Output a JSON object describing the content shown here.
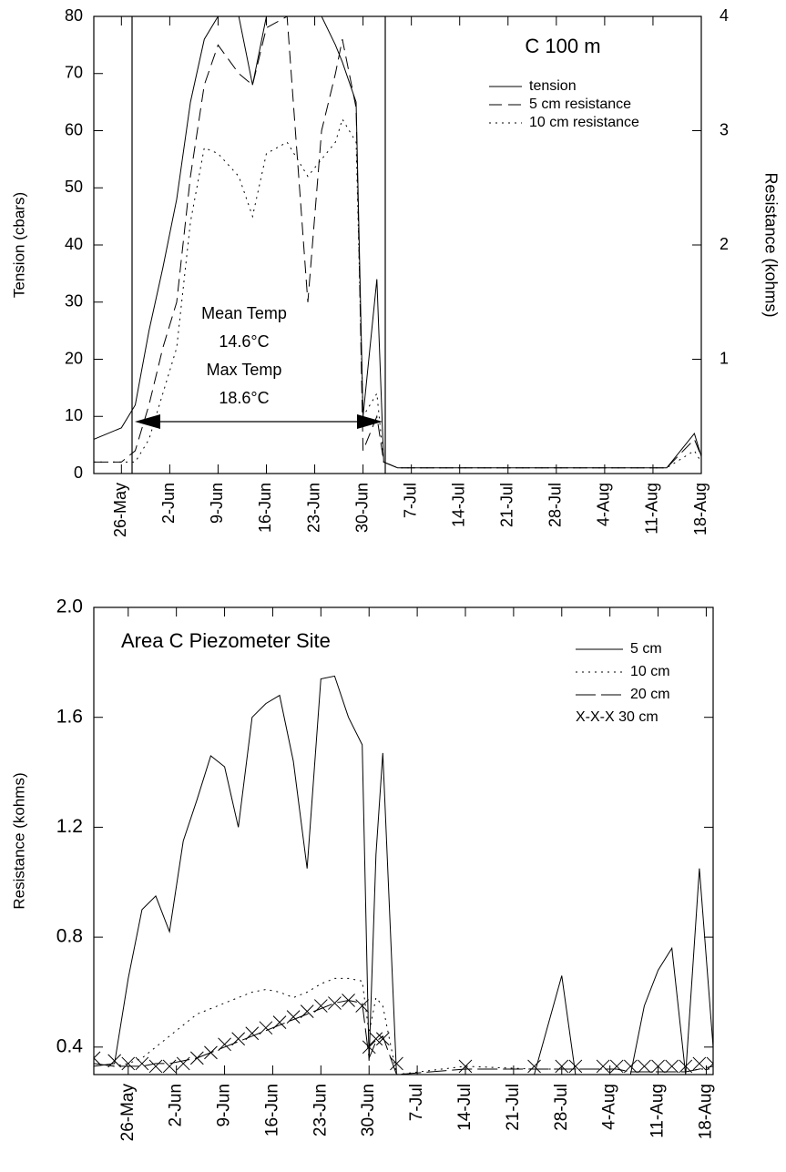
{
  "chart_data": [
    {
      "type": "line",
      "title": "C 100 m",
      "y_label": "Tension (cbars)",
      "y2_label": "Resistance (kohms)",
      "annotations": [
        "Mean Temp",
        "14.6°C",
        "Max Temp",
        "18.6°C"
      ],
      "x": [
        142,
        146,
        148,
        150,
        152,
        154,
        156,
        158,
        160,
        163,
        165,
        167,
        170,
        173,
        175,
        177,
        178,
        180,
        181,
        183,
        184,
        186,
        195,
        205,
        215,
        225,
        229,
        230
      ],
      "xlim": [
        142,
        230
      ],
      "xticks": [
        {
          "value": 146,
          "label": "26-May"
        },
        {
          "value": 153,
          "label": "2-Jun"
        },
        {
          "value": 160,
          "label": "9-Jun"
        },
        {
          "value": 167,
          "label": "16-Jun"
        },
        {
          "value": 174,
          "label": "23-Jun"
        },
        {
          "value": 181,
          "label": "30-Jun"
        },
        {
          "value": 188,
          "label": "7-Jul"
        },
        {
          "value": 195,
          "label": "14-Jul"
        },
        {
          "value": 202,
          "label": "21-Jul"
        },
        {
          "value": 209,
          "label": "28-Jul"
        },
        {
          "value": 216,
          "label": "4-Aug"
        },
        {
          "value": 223,
          "label": "11-Aug"
        },
        {
          "value": 230,
          "label": "18-Aug"
        }
      ],
      "ylim": [
        0,
        80
      ],
      "yticks": [
        0,
        10,
        20,
        30,
        40,
        50,
        60,
        70,
        80
      ],
      "y2lim": [
        0,
        4
      ],
      "y2ticks": [
        1,
        2,
        3,
        4
      ],
      "series": [
        {
          "name": "tension",
          "color": "#000000",
          "style": "solid",
          "values": [
            6,
            8,
            12,
            25,
            36,
            48,
            65,
            76,
            80,
            80,
            68,
            80,
            80,
            80,
            80,
            75,
            72,
            65,
            10,
            34,
            2,
            1,
            1,
            1,
            1,
            1,
            7,
            3
          ]
        },
        {
          "name": "5 cm resistance",
          "color": "#000000",
          "style": "dashed",
          "axis": "y2",
          "values": [
            0.1,
            0.1,
            0.2,
            0.6,
            1.1,
            1.5,
            2.6,
            3.4,
            3.75,
            3.5,
            3.4,
            3.9,
            4,
            1.5,
            3,
            3.5,
            3.8,
            3.2,
            0.2,
            0.5,
            0.1,
            0.05,
            0.05,
            0.05,
            0.05,
            0.05,
            0.3,
            0.15
          ]
        },
        {
          "name": "10 cm resistance",
          "color": "#000000",
          "style": "dotted",
          "axis": "y2",
          "values": [
            0.1,
            0.1,
            0.1,
            0.3,
            0.7,
            1.1,
            2.2,
            2.85,
            2.8,
            2.6,
            2.25,
            2.8,
            2.9,
            2.6,
            2.75,
            2.9,
            3.1,
            2.9,
            0.5,
            0.7,
            0.1,
            0.05,
            0.05,
            0.05,
            0.05,
            0.05,
            0.2,
            0.1
          ]
        }
      ]
    },
    {
      "type": "line",
      "title": "Area C Piezometer Site",
      "y_label": "Resistance (kohms)",
      "x": [
        141,
        144,
        146,
        148,
        150,
        152,
        154,
        156,
        158,
        160,
        162,
        164,
        166,
        168,
        170,
        172,
        174,
        176,
        178,
        180,
        181,
        182,
        183,
        185,
        195,
        205,
        209,
        211,
        215,
        217,
        219,
        221,
        223,
        225,
        227,
        229,
        231
      ],
      "xlim": [
        141,
        231
      ],
      "xticks": [
        {
          "value": 146,
          "label": "26-May"
        },
        {
          "value": 153,
          "label": "2-Jun"
        },
        {
          "value": 160,
          "label": "9-Jun"
        },
        {
          "value": 167,
          "label": "16-Jun"
        },
        {
          "value": 174,
          "label": "23-Jun"
        },
        {
          "value": 181,
          "label": "30-Jun"
        },
        {
          "value": 188,
          "label": "7-Jul"
        },
        {
          "value": 195,
          "label": "14-Jul"
        },
        {
          "value": 202,
          "label": "21-Jul"
        },
        {
          "value": 209,
          "label": "28-Jul"
        },
        {
          "value": 216,
          "label": "4-Aug"
        },
        {
          "value": 223,
          "label": "11-Aug"
        },
        {
          "value": 230,
          "label": "18-Aug"
        }
      ],
      "ylim": [
        0.3,
        2.0
      ],
      "yticks": [
        0.4,
        0.8,
        1.2,
        1.6,
        {
          "value": 2,
          "label": "2.0"
        }
      ],
      "series": [
        {
          "name": "5 cm",
          "color": "#000000",
          "style": "solid",
          "values": [
            0.33,
            0.34,
            0.65,
            0.9,
            0.95,
            0.82,
            1.15,
            1.3,
            1.46,
            1.42,
            1.2,
            1.6,
            1.65,
            1.68,
            1.44,
            1.05,
            1.74,
            1.75,
            1.6,
            1.5,
            0.35,
            1.1,
            1.47,
            0.3,
            0.3,
            0.3,
            0.66,
            0.3,
            0.3,
            0.3,
            0.3,
            0.55,
            0.68,
            0.76,
            0.3,
            1.05,
            0.4
          ]
        },
        {
          "name": "10 cm",
          "color": "#000000",
          "style": "dotted",
          "values": [
            0.34,
            0.33,
            0.34,
            0.36,
            0.4,
            0.44,
            0.48,
            0.52,
            0.54,
            0.56,
            0.58,
            0.6,
            0.61,
            0.6,
            0.58,
            0.6,
            0.63,
            0.65,
            0.65,
            0.64,
            0.45,
            0.58,
            0.55,
            0.3,
            0.33,
            0.32,
            0.32,
            0.32,
            0.32,
            0.32,
            0.31,
            0.31,
            0.31,
            0.31,
            0.31,
            0.32,
            0.32
          ]
        },
        {
          "name": "20 cm",
          "color": "#000000",
          "style": "longdash",
          "values": [
            0.34,
            0.33,
            0.33,
            0.33,
            0.34,
            0.34,
            0.35,
            0.36,
            0.38,
            0.4,
            0.42,
            0.44,
            0.46,
            0.48,
            0.5,
            0.52,
            0.54,
            0.56,
            0.57,
            0.56,
            0.36,
            0.42,
            0.44,
            0.3,
            0.32,
            0.32,
            0.32,
            0.32,
            0.32,
            0.32,
            0.31,
            0.31,
            0.31,
            0.31,
            0.31,
            0.32,
            0.33
          ]
        },
        {
          "name": "X-X-X 30 cm",
          "color": "#000000",
          "style": "x-markers",
          "values": [
            0.36,
            0.35,
            0.34,
            0.34,
            0.33,
            0.33,
            0.34,
            0.36,
            0.38,
            0.41,
            0.43,
            0.45,
            0.47,
            0.49,
            0.51,
            0.53,
            0.55,
            0.56,
            0.57,
            0.55,
            0.4,
            0.43,
            0.43,
            0.34,
            0.33,
            0.33,
            0.33,
            0.33,
            0.33,
            0.33,
            0.33,
            0.33,
            0.33,
            0.33,
            0.33,
            0.34,
            0.34
          ]
        }
      ]
    }
  ]
}
